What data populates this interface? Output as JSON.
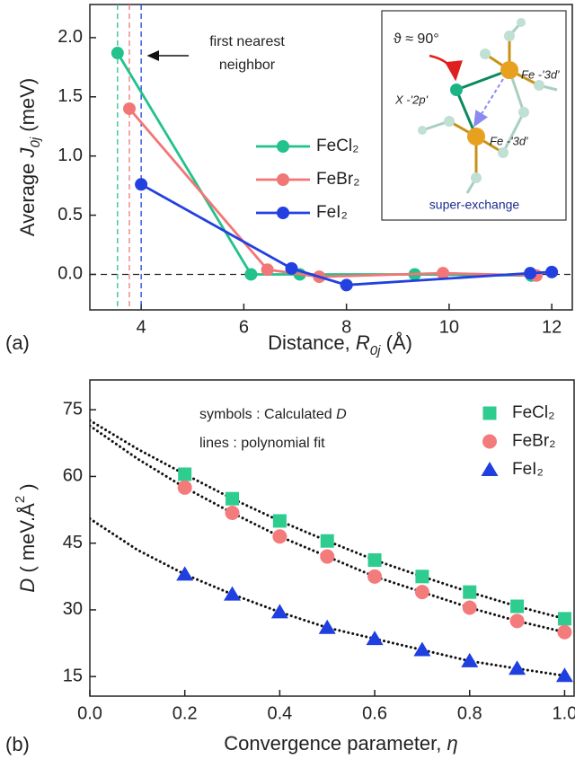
{
  "chart_data": [
    {
      "type": "line",
      "panel": "(a)",
      "xlabel": [
        "Distance, ",
        "R",
        "0j",
        " (Å)"
      ],
      "ylabel": [
        "Average ",
        "J",
        "0j",
        " (meV)"
      ],
      "xlim": [
        3,
        12.4
      ],
      "ylim": [
        -0.3,
        2.28
      ],
      "xticks": [
        4,
        6,
        8,
        10,
        12
      ],
      "yticks": [
        {
          "value": 0,
          "label": "0.0"
        },
        {
          "value": 0.5,
          "label": "0.5"
        },
        {
          "value": 1,
          "label": "1.0"
        },
        {
          "value": 1.5,
          "label": "1.5"
        },
        {
          "value": 2,
          "label": "2.0"
        }
      ],
      "series": [
        {
          "name": "FeCl₂",
          "color": "#22c28c",
          "x": [
            3.54,
            6.14,
            7.09,
            9.33,
            11.6
          ],
          "values": [
            1.87,
            0,
            0,
            0,
            -0.01
          ]
        },
        {
          "name": "FeBr₂",
          "color": "#f27676",
          "x": [
            3.77,
            6.46,
            7.47,
            9.88,
            11.7
          ],
          "values": [
            1.4,
            0.04,
            -0.02,
            0.01,
            -0.01
          ]
        },
        {
          "name": "FeI₂",
          "color": "#2340e0",
          "x": [
            4.0,
            6.93,
            8.0,
            11.58,
            12.0
          ],
          "values": [
            0.76,
            0.05,
            -0.09,
            0.01,
            0.02
          ]
        }
      ],
      "nearest_neighbor_lines": [
        3.54,
        3.77,
        4.0
      ],
      "annotation": [
        "first nearest",
        "neighbor"
      ],
      "inset": {
        "angle": "ϑ ≈ 90°",
        "ligand": "X -'2p'",
        "iron_top": "Fe -'3d'",
        "iron_bottom": "Fe -'3d'",
        "caption": "super-exchange"
      }
    },
    {
      "type": "scatter",
      "panel": "(b)",
      "xlabel": [
        "Convergence parameter, ",
        "η"
      ],
      "ylabel": [
        "D",
        " ( meV.Å",
        "2",
        " )"
      ],
      "xlim": [
        0,
        1.02
      ],
      "ylim": [
        10.6,
        81.7
      ],
      "xticks": [
        {
          "value": 0,
          "label": "0.0"
        },
        {
          "value": 0.2,
          "label": "0.2"
        },
        {
          "value": 0.4,
          "label": "0.4"
        },
        {
          "value": 0.6,
          "label": "0.6"
        },
        {
          "value": 0.8,
          "label": "0.8"
        },
        {
          "value": 1,
          "label": "1.0"
        }
      ],
      "yticks": [
        15,
        30,
        45,
        60,
        75
      ],
      "notes": [
        [
          "symbols : Calculated ",
          "D"
        ],
        [
          "lines : polynomial fit"
        ]
      ],
      "series": [
        {
          "name": "FeCl₂",
          "color": "#2ecc8f",
          "marker": "square",
          "x": [
            0.2,
            0.3,
            0.4,
            0.5,
            0.6,
            0.7,
            0.8,
            0.9,
            1.0
          ],
          "values": [
            60.5,
            55,
            50,
            45.5,
            41.2,
            37.5,
            34,
            30.8,
            28
          ]
        },
        {
          "name": "FeBr₂",
          "color": "#f47b7b",
          "marker": "circle",
          "x": [
            0.2,
            0.3,
            0.4,
            0.5,
            0.6,
            0.7,
            0.8,
            0.9,
            1.0
          ],
          "values": [
            57.5,
            51.8,
            46.5,
            42,
            37.5,
            34,
            30.5,
            27.5,
            25
          ]
        },
        {
          "name": "FeI₂",
          "color": "#1f3fe0",
          "marker": "triangle",
          "x": [
            0.2,
            0.3,
            0.4,
            0.5,
            0.6,
            0.7,
            0.8,
            0.9,
            1.0
          ],
          "values": [
            38,
            33.5,
            29.5,
            26,
            23.5,
            21,
            18.5,
            16.8,
            15.2
          ]
        }
      ],
      "fits": [
        {
          "color": "#111111",
          "x": [
            0,
            0.1,
            0.2,
            0.3,
            0.4,
            0.5,
            0.6,
            0.7,
            0.8,
            0.9,
            1.0
          ],
          "values": [
            72.6,
            66.2,
            60.5,
            55,
            50,
            45.5,
            41.2,
            37.5,
            34,
            30.8,
            28
          ]
        },
        {
          "color": "#111111",
          "x": [
            0,
            0.1,
            0.2,
            0.3,
            0.4,
            0.5,
            0.6,
            0.7,
            0.8,
            0.9,
            1.0
          ],
          "values": [
            71.4,
            64,
            57.5,
            51.8,
            46.5,
            42,
            37.5,
            34,
            30.5,
            27.5,
            25
          ]
        },
        {
          "color": "#111111",
          "x": [
            0,
            0.1,
            0.2,
            0.3,
            0.4,
            0.5,
            0.6,
            0.7,
            0.8,
            0.9,
            1.0
          ],
          "values": [
            50.5,
            43.5,
            38,
            33.5,
            29.5,
            26,
            23.5,
            21,
            18.5,
            16.8,
            15.2
          ]
        }
      ]
    }
  ]
}
